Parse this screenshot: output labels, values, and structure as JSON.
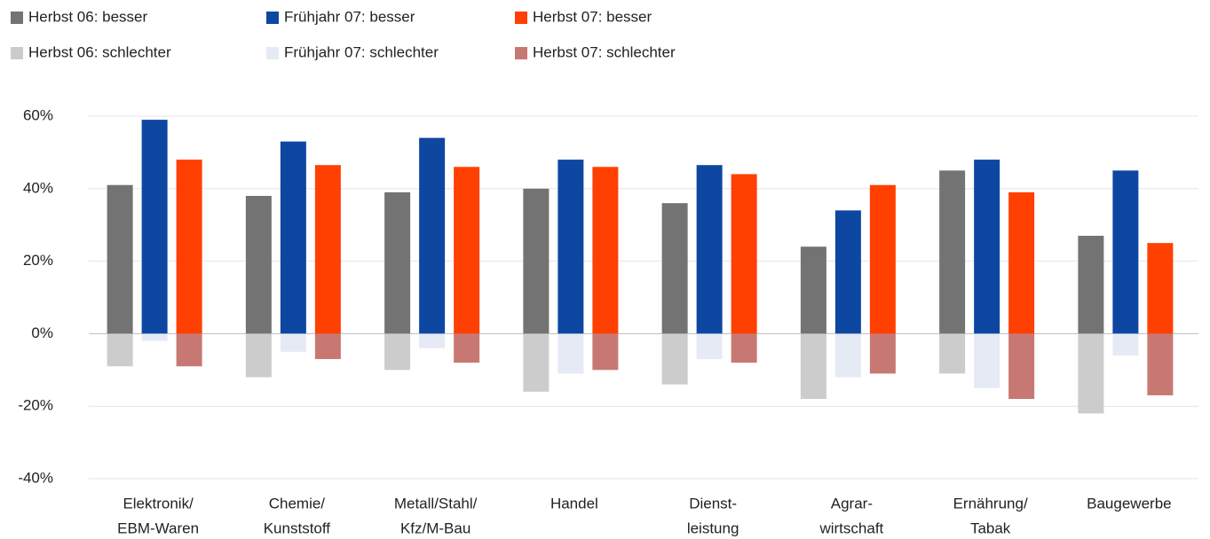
{
  "chart_data": {
    "type": "bar",
    "categories": [
      [
        "Elektronik/",
        "EBM-Waren"
      ],
      [
        "Chemie/",
        "Kunststoff"
      ],
      [
        "Metall/Stahl/",
        "Kfz/M-Bau"
      ],
      [
        "Handel"
      ],
      [
        "Dienst-",
        "leistung"
      ],
      [
        "Agrar-",
        "wirtschaft"
      ],
      [
        "Ernährung/",
        "Tabak"
      ],
      [
        "Baugewerbe"
      ]
    ],
    "series": [
      {
        "name": "Herbst 06: besser",
        "color": "#737373",
        "values": [
          41,
          38,
          39,
          40,
          36,
          24,
          45,
          27
        ]
      },
      {
        "name": "Frühjahr 07: besser",
        "color": "#0d47a1",
        "values": [
          59,
          53,
          54,
          48,
          46.5,
          34,
          48,
          45
        ]
      },
      {
        "name": "Herbst 07: besser",
        "color": "#ff4000",
        "values": [
          48,
          46.5,
          46,
          46,
          44,
          41,
          39,
          25
        ]
      },
      {
        "name": "Herbst 06: schlechter",
        "color": "#cccccc",
        "values": [
          -9,
          -12,
          -10,
          -16,
          -14,
          -18,
          -11,
          -22
        ]
      },
      {
        "name": "Frühjahr 07: schlechter",
        "color": "#e6eaf5",
        "values": [
          -2,
          -5,
          -4,
          -11,
          -7,
          -12,
          -15,
          -6
        ]
      },
      {
        "name": "Herbst 07: schlechter",
        "color": "#c87872",
        "values": [
          -9,
          -7,
          -8,
          -10,
          -8,
          -11,
          -18,
          -17
        ]
      }
    ],
    "ylim": [
      -40,
      60
    ],
    "yticks": [
      {
        "value": -40,
        "label": "-40%"
      },
      {
        "value": -20,
        "label": "-20%"
      },
      {
        "value": 0,
        "label": "0%"
      },
      {
        "value": 20,
        "label": "20%"
      },
      {
        "value": 40,
        "label": "40%"
      },
      {
        "value": 60,
        "label": "60%"
      }
    ],
    "grid": true
  }
}
